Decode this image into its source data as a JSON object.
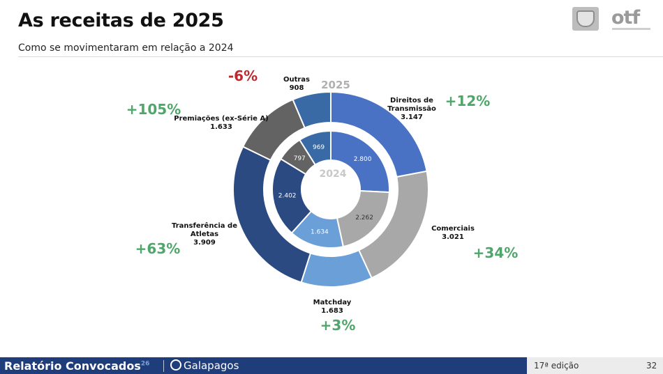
{
  "header": {
    "title": "As receitas de 2025",
    "subtitle": "Como se movimentaram em relação a 2024"
  },
  "logos": {
    "badge_icon": "shield-logo-icon",
    "otf_text": "otf"
  },
  "chart_data": {
    "type": "donut",
    "title": "As receitas de 2025",
    "subtitle": "Como se movimentaram em relação a 2024",
    "ring_labels": {
      "outer": "2025",
      "inner": "2024"
    },
    "categories": [
      {
        "name": "Direitos de Transmissão",
        "name_lines": [
          "Direitos de",
          "Transmissão"
        ],
        "v2025": 3147,
        "v2025_label": "3.147",
        "v2024": 2800,
        "v2024_label": "2.800",
        "change": "+12%",
        "color": "#4a72c4"
      },
      {
        "name": "Comerciais",
        "name_lines": [
          "Comerciais"
        ],
        "v2025": 3021,
        "v2025_label": "3.021",
        "v2024": 2262,
        "v2024_label": "2.262",
        "change": "+34%",
        "color": "#a8a8a8"
      },
      {
        "name": "Matchday",
        "name_lines": [
          "Matchday"
        ],
        "v2025": 1683,
        "v2025_label": "1.683",
        "v2024": 1634,
        "v2024_label": "1.634",
        "change": "+3%",
        "color": "#6a9fd8"
      },
      {
        "name": "Transferência de Atletas",
        "name_lines": [
          "Transferência de",
          "Atletas"
        ],
        "v2025": 3909,
        "v2025_label": "3.909",
        "v2024": 2402,
        "v2024_label": "2.402",
        "change": "+63%",
        "color": "#2c4a82"
      },
      {
        "name": "Premiações (ex-Série A)",
        "name_lines": [
          "Premiações (ex-Série A)"
        ],
        "v2025": 1633,
        "v2025_label": "1.633",
        "v2024": 797,
        "v2024_label": "797",
        "change": "+105%",
        "color": "#636363"
      },
      {
        "name": "Outras",
        "name_lines": [
          "Outras"
        ],
        "v2025": 908,
        "v2025_label": "908",
        "v2024": 969,
        "v2024_label": "969",
        "change": "-6%",
        "color": "#3a6aa6"
      }
    ],
    "colors": {
      "positive": "#4fa66a",
      "negative": "#c0282d"
    }
  },
  "footer": {
    "brand": "Relatório Convocados",
    "brand_sup": "26",
    "partner": "Galapagos",
    "edition": "17ª edição",
    "page": "32"
  }
}
